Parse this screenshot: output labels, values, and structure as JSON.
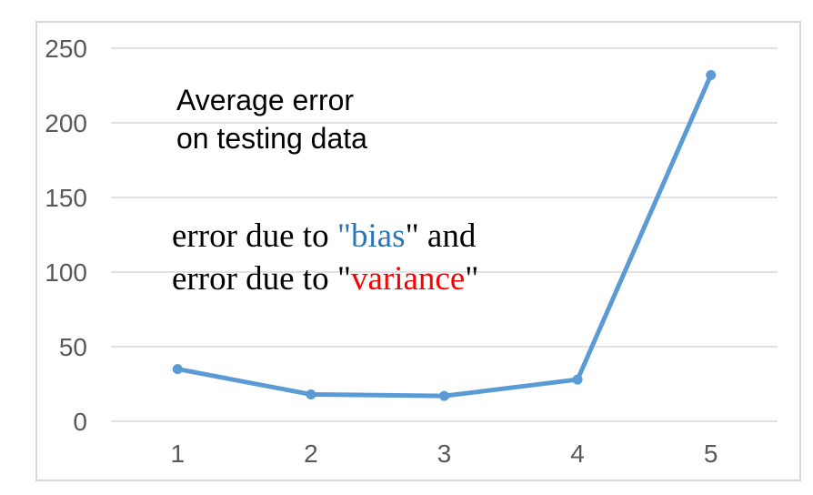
{
  "chart_data": {
    "type": "line",
    "title": "",
    "xlabel": "",
    "ylabel": "",
    "x": [
      1,
      2,
      3,
      4,
      5
    ],
    "categories": [
      "1",
      "2",
      "3",
      "4",
      "5"
    ],
    "series": [
      {
        "name": "Average error on testing data",
        "values": [
          35,
          18,
          17,
          28,
          232
        ]
      }
    ],
    "ylim": [
      0,
      250
    ],
    "yticks": [
      0,
      50,
      100,
      150,
      200,
      250
    ],
    "grid": true,
    "legend_position": "none",
    "line_color": "#5B9BD5",
    "marker_color": "#5B9BD5",
    "grid_color": "#D9D9D9",
    "frame_color": "#D9D9D9",
    "tick_label_color": "#595959",
    "background_color": "#FFFFFF"
  },
  "annotations": {
    "testing_label": {
      "line1": "Average error",
      "line2": "on testing data",
      "color": "#000000"
    },
    "bias_variance_label": {
      "line1": {
        "seg1": "error due to ",
        "seg2": "\"bias",
        "seg3": "\" and"
      },
      "line2": {
        "seg1": "error due to \"",
        "seg2": "variance",
        "seg3": "\""
      },
      "text_color": "#000000",
      "bias_color": "#2E75B6",
      "variance_color": "#FF0000"
    }
  }
}
